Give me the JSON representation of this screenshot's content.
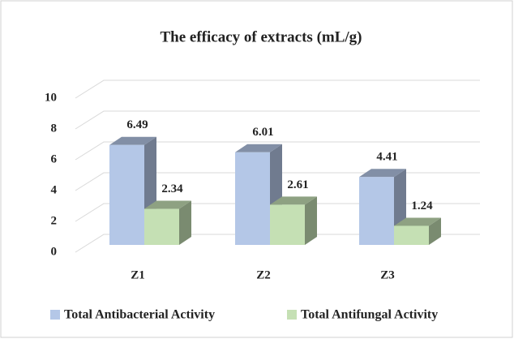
{
  "chart_data": {
    "type": "bar3d",
    "title": "The efficacy of extracts (mL/g)",
    "categories": [
      "Z1",
      "Z2",
      "Z3"
    ],
    "series": [
      {
        "name": "Total Antibacterial Activity",
        "color": "#b4c7e7",
        "values": [
          6.49,
          6.01,
          4.41
        ]
      },
      {
        "name": "Total Antifungal Activity",
        "color": "#c5e0b4",
        "values": [
          2.34,
          2.61,
          1.24
        ]
      }
    ],
    "ylim": [
      0,
      10
    ],
    "yticks": [
      0,
      2,
      4,
      6,
      8,
      10
    ],
    "grid": true,
    "legend": "bottom"
  }
}
